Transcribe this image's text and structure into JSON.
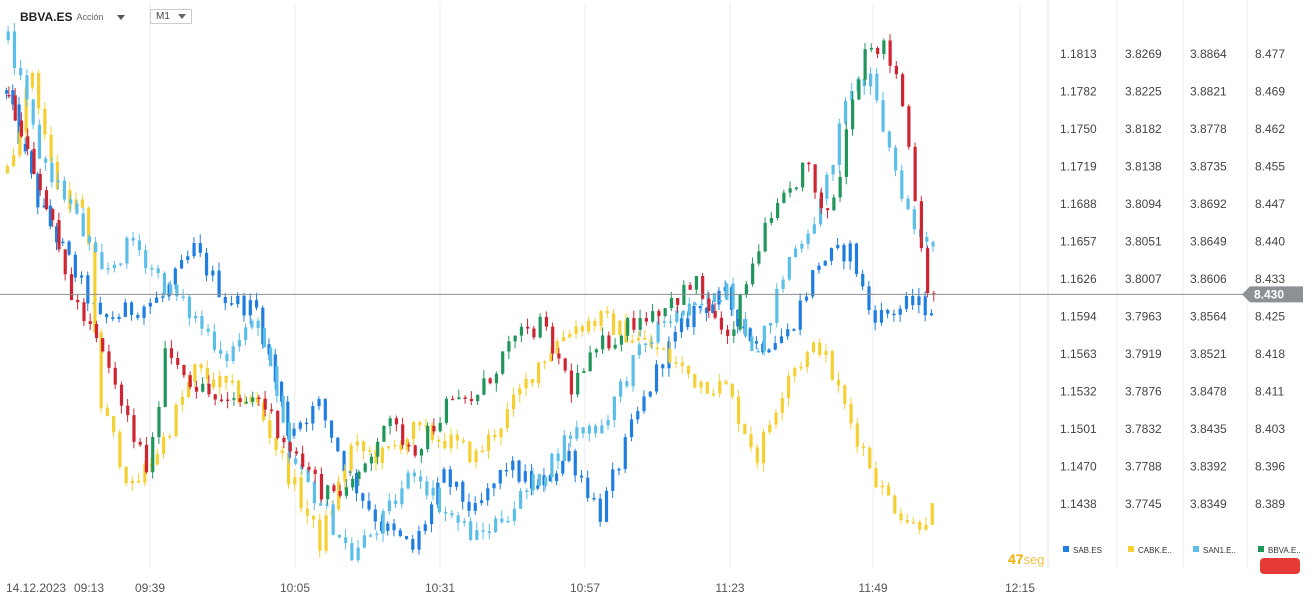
{
  "header": {
    "symbol": "BBVA.ES",
    "instrument_type": "Acción",
    "timeframe": "M1"
  },
  "countdown": {
    "value": "47",
    "unit": "seg"
  },
  "colors": {
    "SAB.ES": "#1f7ee0",
    "CABK.ES": "#f5d033",
    "SAN1.ES": "#5bbfe8",
    "BBVA.ES_up": "#21965a",
    "BBVA.ES_down": "#cf2533",
    "current_price_badge": "#8c9196",
    "alert_button": "#e53935"
  },
  "chart_data": {
    "type": "candlestick",
    "date_label": "14.12.2023",
    "x_ticks": [
      "09:13",
      "09:39",
      "10:05",
      "10:31",
      "10:57",
      "11:23",
      "11:49",
      "12:15"
    ],
    "price_scales": [
      {
        "symbol": "SAB.ES",
        "ticks": [
          "1.1813",
          "1.1782",
          "1.1750",
          "1.1719",
          "1.1688",
          "1.1657",
          "1.1626",
          "1.1594",
          "1.1563",
          "1.1532",
          "1.1501",
          "1.1470",
          "1.1438"
        ]
      },
      {
        "symbol": "CABK.ES",
        "ticks": [
          "3.8269",
          "3.8225",
          "3.8182",
          "3.8138",
          "3.8094",
          "3.8051",
          "3.8007",
          "3.7963",
          "3.7919",
          "3.7876",
          "3.7832",
          "3.7788",
          "3.7745"
        ]
      },
      {
        "symbol": "SAN1.ES",
        "ticks": [
          "3.8864",
          "3.8821",
          "3.8778",
          "3.8735",
          "3.8692",
          "3.8649",
          "3.8606",
          "3.8564",
          "3.8521",
          "3.8478",
          "3.8435",
          "3.8392",
          "3.8349"
        ]
      },
      {
        "symbol": "BBVA.ES",
        "ticks": [
          "8.477",
          "8.469",
          "8.462",
          "8.455",
          "8.447",
          "8.440",
          "8.433",
          "8.425",
          "8.418",
          "8.411",
          "8.403",
          "8.396",
          "8.389"
        ]
      }
    ],
    "current_price": {
      "symbol": "BBVA.ES",
      "value": "8.430"
    },
    "legend": [
      {
        "label": "SAB.ES",
        "color": "#1f7ee0"
      },
      {
        "label": "CABK.E..",
        "color": "#f5d033"
      },
      {
        "label": "SAN1.E..",
        "color": "#5bbfe8"
      },
      {
        "label": "BBVA.E..",
        "color": "#21965a"
      }
    ],
    "series": [
      {
        "name": "SAB.ES",
        "path": [
          [
            0,
            1.178
          ],
          [
            10,
            1.169
          ],
          [
            20,
            1.164
          ],
          [
            30,
            1.159
          ],
          [
            40,
            1.16
          ],
          [
            50,
            1.161
          ],
          [
            60,
            1.165
          ],
          [
            70,
            1.161
          ],
          [
            80,
            1.16
          ],
          [
            90,
            1.15
          ],
          [
            100,
            1.152
          ],
          [
            110,
            1.146
          ],
          [
            120,
            1.142
          ],
          [
            130,
            1.14
          ],
          [
            140,
            1.146
          ],
          [
            150,
            1.143
          ],
          [
            160,
            1.147
          ],
          [
            170,
            1.145
          ],
          [
            180,
            1.148
          ],
          [
            190,
            1.143
          ],
          [
            200,
            1.15
          ],
          [
            210,
            1.156
          ],
          [
            220,
            1.16
          ],
          [
            230,
            1.161
          ],
          [
            240,
            1.157
          ],
          [
            250,
            1.158
          ],
          [
            260,
            1.164
          ],
          [
            270,
            1.165
          ],
          [
            276,
            1.16
          ],
          [
            280,
            1.1595
          ],
          [
            290,
            1.1605
          ],
          [
            297,
            1.16
          ]
        ]
      },
      {
        "name": "CABK.ES",
        "path": [
          [
            0,
            3.813
          ],
          [
            8,
            3.825
          ],
          [
            15,
            3.812
          ],
          [
            25,
            3.808
          ],
          [
            30,
            3.786
          ],
          [
            40,
            3.776
          ],
          [
            50,
            3.782
          ],
          [
            60,
            3.79
          ],
          [
            70,
            3.788
          ],
          [
            80,
            3.786
          ],
          [
            90,
            3.778
          ],
          [
            100,
            3.77
          ],
          [
            110,
            3.781
          ],
          [
            120,
            3.78
          ],
          [
            130,
            3.783
          ],
          [
            140,
            3.782
          ],
          [
            150,
            3.78
          ],
          [
            160,
            3.785
          ],
          [
            170,
            3.791
          ],
          [
            180,
            3.795
          ],
          [
            190,
            3.796
          ],
          [
            200,
            3.794
          ],
          [
            210,
            3.792
          ],
          [
            220,
            3.789
          ],
          [
            230,
            3.788
          ],
          [
            240,
            3.78
          ],
          [
            250,
            3.79
          ],
          [
            260,
            3.793
          ],
          [
            270,
            3.784
          ],
          [
            280,
            3.776
          ],
          [
            290,
            3.772
          ],
          [
            297,
            3.774
          ]
        ]
      },
      {
        "name": "SAN1.ES",
        "path": [
          [
            0,
            3.888
          ],
          [
            10,
            3.875
          ],
          [
            20,
            3.869
          ],
          [
            30,
            3.861
          ],
          [
            40,
            3.865
          ],
          [
            50,
            3.86
          ],
          [
            60,
            3.856
          ],
          [
            70,
            3.852
          ],
          [
            80,
            3.856
          ],
          [
            90,
            3.84
          ],
          [
            100,
            3.835
          ],
          [
            110,
            3.829
          ],
          [
            120,
            3.833
          ],
          [
            130,
            3.839
          ],
          [
            140,
            3.834
          ],
          [
            150,
            3.831
          ],
          [
            160,
            3.834
          ],
          [
            170,
            3.838
          ],
          [
            180,
            3.843
          ],
          [
            190,
            3.844
          ],
          [
            200,
            3.851
          ],
          [
            210,
            3.856
          ],
          [
            220,
            3.857
          ],
          [
            230,
            3.86
          ],
          [
            240,
            3.852
          ],
          [
            250,
            3.863
          ],
          [
            260,
            3.869
          ],
          [
            270,
            3.883
          ],
          [
            276,
            3.883
          ],
          [
            280,
            3.878
          ],
          [
            290,
            3.866
          ],
          [
            297,
            3.865
          ]
        ]
      },
      {
        "name": "BBVA.ES",
        "path": [
          [
            0,
            8.469
          ],
          [
            10,
            8.452
          ],
          [
            15,
            8.44
          ],
          [
            20,
            8.43
          ],
          [
            30,
            8.418
          ],
          [
            40,
            8.402
          ],
          [
            45,
            8.395
          ],
          [
            50,
            8.42
          ],
          [
            60,
            8.412
          ],
          [
            70,
            8.408
          ],
          [
            80,
            8.41
          ],
          [
            90,
            8.4
          ],
          [
            100,
            8.392
          ],
          [
            110,
            8.392
          ],
          [
            120,
            8.405
          ],
          [
            130,
            8.4
          ],
          [
            140,
            8.408
          ],
          [
            150,
            8.41
          ],
          [
            160,
            8.42
          ],
          [
            170,
            8.424
          ],
          [
            180,
            8.412
          ],
          [
            190,
            8.42
          ],
          [
            200,
            8.425
          ],
          [
            210,
            8.428
          ],
          [
            220,
            8.432
          ],
          [
            230,
            8.42
          ],
          [
            240,
            8.44
          ],
          [
            250,
            8.45
          ],
          [
            255,
            8.456
          ],
          [
            260,
            8.445
          ],
          [
            265,
            8.45
          ],
          [
            270,
            8.47
          ],
          [
            275,
            8.48
          ],
          [
            280,
            8.478
          ],
          [
            285,
            8.472
          ],
          [
            290,
            8.45
          ],
          [
            293,
            8.433
          ],
          [
            297,
            8.43
          ]
        ]
      }
    ],
    "grid": true
  }
}
